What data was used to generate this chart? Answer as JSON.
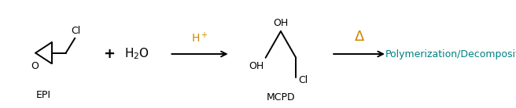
{
  "bg_color": "#ffffff",
  "text_color": "#000000",
  "orange_color": "#CC8800",
  "teal_color": "#008080",
  "fig_width": 6.56,
  "fig_height": 1.38,
  "dpi": 100,
  "epi_label": "EPI",
  "mcpd_label": "MCPD",
  "plus_sign": "+",
  "h2o_text": "H$_2$O",
  "h_plus_text": "H$^+$",
  "delta_text": "Δ",
  "poly_text": "Polymerization/Decomposition",
  "o_label": "O",
  "cl_label": "Cl",
  "oh_top_label": "OH",
  "oh_bot_label": "OH",
  "cl_bot_label": "Cl",
  "xlim": [
    0,
    10
  ],
  "ylim": [
    0,
    2
  ]
}
